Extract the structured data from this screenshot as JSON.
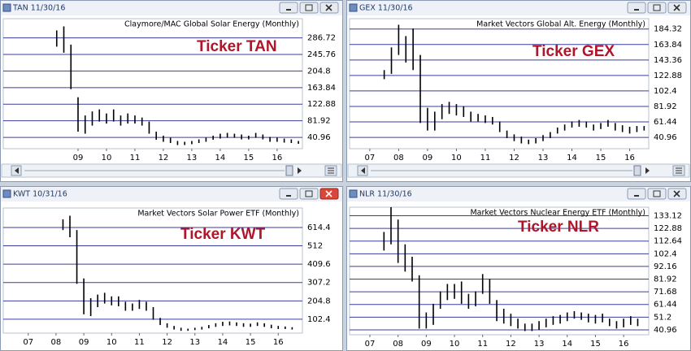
{
  "chart_data": [
    {
      "type": "range_bar",
      "window_title": "TAN 11/30/16",
      "title": "Claymore/MAC Global Solar Energy (Monthly)",
      "annotation": "Ticker TAN",
      "color": "#000000",
      "grid": true,
      "grid_color": "#3c3c9c",
      "xlim": [
        2006.37,
        2016.89
      ],
      "ylim": [
        13,
        334
      ],
      "xticks": [
        {
          "value": 2009,
          "label": "09"
        },
        {
          "value": 2010,
          "label": "10"
        },
        {
          "value": 2011,
          "label": "11"
        },
        {
          "value": 2012,
          "label": "12"
        },
        {
          "value": 2013,
          "label": "13"
        },
        {
          "value": 2014,
          "label": "14"
        },
        {
          "value": 2015,
          "label": "15"
        },
        {
          "value": 2016,
          "label": "16"
        }
      ],
      "yticks": [
        40.96,
        81.92,
        122.88,
        163.84,
        204.8,
        245.76,
        286.72
      ],
      "x": [
        2008.25,
        2008.5,
        2008.75,
        2009.0,
        2009.25,
        2009.5,
        2009.75,
        2010.0,
        2010.25,
        2010.5,
        2010.75,
        2011.0,
        2011.25,
        2011.5,
        2011.75,
        2012.0,
        2012.25,
        2012.5,
        2012.75,
        2013.0,
        2013.25,
        2013.5,
        2013.75,
        2014.0,
        2014.25,
        2014.5,
        2014.75,
        2015.0,
        2015.25,
        2015.5,
        2015.75,
        2016.0,
        2016.25,
        2016.5,
        2016.75
      ],
      "high": [
        305,
        315,
        270,
        140,
        95,
        105,
        110,
        100,
        110,
        95,
        100,
        95,
        90,
        80,
        55,
        45,
        40,
        32,
        30,
        32,
        36,
        40,
        45,
        50,
        52,
        50,
        48,
        45,
        52,
        48,
        42,
        40,
        38,
        36,
        32
      ],
      "low": [
        265,
        250,
        160,
        55,
        50,
        70,
        80,
        75,
        80,
        70,
        75,
        75,
        70,
        50,
        35,
        30,
        27,
        22,
        22,
        24,
        27,
        30,
        35,
        38,
        40,
        40,
        36,
        36,
        40,
        36,
        30,
        30,
        28,
        27,
        25
      ]
    },
    {
      "type": "range_bar",
      "window_title": "GEX 11/30/16",
      "title": "Market Vectors Global Alt. Energy (Monthly)",
      "annotation": "Ticker GEX",
      "color": "#000000",
      "grid": true,
      "grid_color": "#3c3c9c",
      "xlim": [
        2006.3,
        2016.66
      ],
      "ylim": [
        26,
        198
      ],
      "xticks": [
        {
          "value": 2007,
          "label": "07"
        },
        {
          "value": 2008,
          "label": "08"
        },
        {
          "value": 2009,
          "label": "09"
        },
        {
          "value": 2010,
          "label": "10"
        },
        {
          "value": 2011,
          "label": "11"
        },
        {
          "value": 2012,
          "label": "12"
        },
        {
          "value": 2013,
          "label": "13"
        },
        {
          "value": 2014,
          "label": "14"
        },
        {
          "value": 2015,
          "label": "15"
        },
        {
          "value": 2016,
          "label": "16"
        }
      ],
      "yticks": [
        40.96,
        61.44,
        81.92,
        102.4,
        122.88,
        143.36,
        163.84,
        184.32
      ],
      "x": [
        2007.5,
        2007.75,
        2008.0,
        2008.25,
        2008.5,
        2008.75,
        2009.0,
        2009.25,
        2009.5,
        2009.75,
        2010.0,
        2010.25,
        2010.5,
        2010.75,
        2011.0,
        2011.25,
        2011.5,
        2011.75,
        2012.0,
        2012.25,
        2012.5,
        2012.75,
        2013.0,
        2013.25,
        2013.5,
        2013.75,
        2014.0,
        2014.25,
        2014.5,
        2014.75,
        2015.0,
        2015.25,
        2015.5,
        2015.75,
        2016.0,
        2016.25,
        2016.5
      ],
      "high": [
        130,
        160,
        190,
        175,
        185,
        150,
        80,
        75,
        85,
        88,
        85,
        82,
        75,
        72,
        70,
        68,
        62,
        50,
        45,
        42,
        38,
        40,
        44,
        48,
        54,
        58,
        62,
        64,
        62,
        58,
        60,
        64,
        60,
        57,
        55,
        56,
        56
      ],
      "low": [
        118,
        125,
        150,
        140,
        130,
        60,
        50,
        50,
        65,
        72,
        70,
        68,
        62,
        62,
        60,
        58,
        48,
        40,
        36,
        33,
        32,
        33,
        36,
        40,
        46,
        50,
        54,
        55,
        54,
        50,
        52,
        55,
        50,
        48,
        46,
        48,
        50
      ]
    },
    {
      "type": "range_bar",
      "window_title": "KWT 10/31/16",
      "title": "Market Vectors Solar Power ETF (Monthly)",
      "annotation": "Ticker KWT",
      "color": "#000000",
      "grid": true,
      "grid_color": "#3c3c9c",
      "xlim": [
        2006.1,
        2016.87
      ],
      "ylim": [
        25,
        723
      ],
      "xticks": [
        {
          "value": 2007,
          "label": "07"
        },
        {
          "value": 2008,
          "label": "08"
        },
        {
          "value": 2009,
          "label": "09"
        },
        {
          "value": 2010,
          "label": "10"
        },
        {
          "value": 2011,
          "label": "11"
        },
        {
          "value": 2012,
          "label": "12"
        },
        {
          "value": 2013,
          "label": "13"
        },
        {
          "value": 2014,
          "label": "14"
        },
        {
          "value": 2015,
          "label": "15"
        },
        {
          "value": 2016,
          "label": "16"
        }
      ],
      "yticks": [
        102.4,
        204.8,
        307.2,
        409.6,
        512,
        614.4
      ],
      "x": [
        2008.25,
        2008.5,
        2008.75,
        2009.0,
        2009.25,
        2009.5,
        2009.75,
        2010.0,
        2010.25,
        2010.5,
        2010.75,
        2011.0,
        2011.25,
        2011.5,
        2011.75,
        2012.0,
        2012.25,
        2012.5,
        2012.75,
        2013.0,
        2013.25,
        2013.5,
        2013.75,
        2014.0,
        2014.25,
        2014.5,
        2014.75,
        2015.0,
        2015.25,
        2015.5,
        2015.75,
        2016.0,
        2016.25,
        2016.5
      ],
      "high": [
        660,
        680,
        600,
        330,
        220,
        240,
        250,
        230,
        230,
        200,
        190,
        210,
        200,
        170,
        110,
        80,
        65,
        55,
        50,
        55,
        60,
        70,
        80,
        88,
        90,
        85,
        80,
        78,
        85,
        80,
        72,
        65,
        62,
        58
      ],
      "low": [
        600,
        560,
        300,
        130,
        120,
        170,
        190,
        180,
        175,
        150,
        150,
        160,
        150,
        100,
        70,
        55,
        45,
        38,
        38,
        42,
        45,
        52,
        60,
        65,
        68,
        65,
        60,
        60,
        65,
        60,
        52,
        48,
        48,
        45
      ]
    },
    {
      "type": "range_bar",
      "window_title": "NLR 11/30/16",
      "title": "Market Vectors Nuclear Energy ETF (Monthly)",
      "annotation": "Ticker NLR",
      "color": "#000000",
      "grid": true,
      "grid_color": "#3c3c9c",
      "xlim": [
        2006.28,
        2016.89
      ],
      "ylim": [
        37,
        140
      ],
      "xticks": [
        {
          "value": 2007,
          "label": "07"
        },
        {
          "value": 2008,
          "label": "08"
        },
        {
          "value": 2009,
          "label": "09"
        },
        {
          "value": 2010,
          "label": "10"
        },
        {
          "value": 2011,
          "label": "11"
        },
        {
          "value": 2012,
          "label": "12"
        },
        {
          "value": 2013,
          "label": "13"
        },
        {
          "value": 2014,
          "label": "14"
        },
        {
          "value": 2015,
          "label": "15"
        },
        {
          "value": 2016,
          "label": "16"
        }
      ],
      "yticks": [
        40.96,
        51.2,
        61.44,
        71.68,
        81.92,
        92.16,
        102.4,
        112.64,
        122.88,
        133.12
      ],
      "x": [
        2007.5,
        2007.75,
        2008.0,
        2008.25,
        2008.5,
        2008.75,
        2009.0,
        2009.25,
        2009.5,
        2009.75,
        2010.0,
        2010.25,
        2010.5,
        2010.75,
        2011.0,
        2011.25,
        2011.5,
        2011.75,
        2012.0,
        2012.25,
        2012.5,
        2012.75,
        2013.0,
        2013.25,
        2013.5,
        2013.75,
        2014.0,
        2014.25,
        2014.5,
        2014.75,
        2015.0,
        2015.25,
        2015.5,
        2015.75,
        2016.0,
        2016.25,
        2016.5
      ],
      "high": [
        120,
        140,
        130,
        110,
        100,
        85,
        55,
        62,
        72,
        78,
        78,
        80,
        70,
        72,
        86,
        82,
        65,
        58,
        54,
        50,
        46,
        46,
        48,
        50,
        52,
        53,
        55,
        56,
        55,
        54,
        53,
        54,
        50,
        48,
        50,
        52,
        50
      ],
      "low": [
        105,
        110,
        95,
        88,
        80,
        42,
        42,
        45,
        58,
        65,
        66,
        62,
        58,
        60,
        70,
        62,
        48,
        46,
        44,
        42,
        40,
        40,
        41,
        43,
        45,
        46,
        48,
        50,
        49,
        47,
        46,
        47,
        44,
        42,
        43,
        45,
        44
      ]
    }
  ]
}
